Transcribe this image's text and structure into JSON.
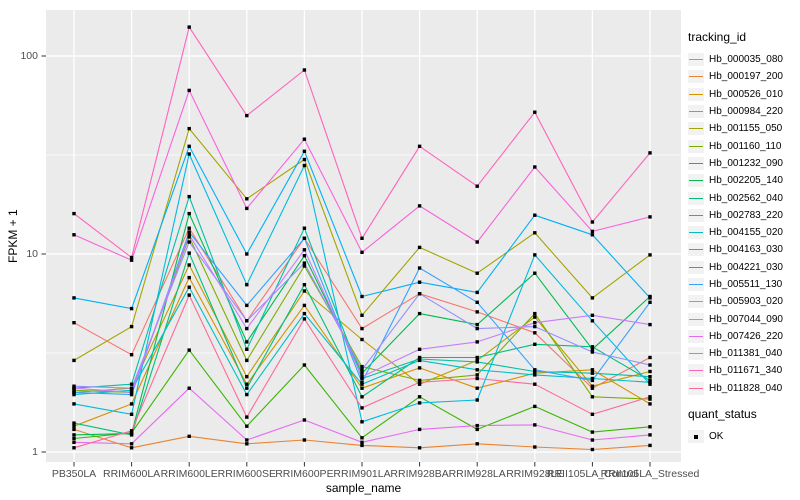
{
  "chart_data": {
    "type": "line",
    "title": "",
    "xlabel": "sample_name",
    "ylabel": "FPKM + 1",
    "y_scale": "log10",
    "y_ticks": [
      1,
      10,
      100
    ],
    "y_minor_ticks": [
      3.162,
      31.62
    ],
    "ylim": [
      0.9,
      170
    ],
    "grid": "on",
    "legend_position": "right",
    "categories": [
      "PB350LA",
      "RRIM600LA",
      "RRIM600LE",
      "RRIM600SE",
      "RRIM600PE",
      "RRIM901LA",
      "RRIM928BA",
      "RRIM928LA",
      "RRIM928LE",
      "RRII105LA_Control",
      "RRII105LA_Stressed"
    ],
    "series": [
      {
        "name": "Hb_000035_080",
        "color": "#F8766D",
        "values": [
          4.5,
          3.1,
          13.5,
          4.6,
          12.0,
          4.2,
          6.3,
          5.1,
          4.0,
          2.1,
          3.0
        ]
      },
      {
        "name": "Hb_000197_200",
        "color": "#EA8331",
        "values": [
          1.3,
          1.05,
          1.2,
          1.1,
          1.15,
          1.08,
          1.05,
          1.1,
          1.06,
          1.03,
          1.08
        ]
      },
      {
        "name": "Hb_000526_010",
        "color": "#D89000",
        "values": [
          1.35,
          1.75,
          7.6,
          2.2,
          5.5,
          2.1,
          2.66,
          2.1,
          2.5,
          2.6,
          1.75
        ]
      },
      {
        "name": "Hb_000984_220",
        "color": "#C09B00",
        "values": [
          2.0,
          2.1,
          8.8,
          2.4,
          6.5,
          3.7,
          2.2,
          2.9,
          4.8,
          2.15,
          2.55
        ]
      },
      {
        "name": "Hb_001155_050",
        "color": "#A3A500",
        "values": [
          2.9,
          4.3,
          43,
          19,
          30,
          4.9,
          10.8,
          8.0,
          12.8,
          6.0,
          9.9
        ]
      },
      {
        "name": "Hb_001160_110",
        "color": "#7CAE00",
        "values": [
          2.05,
          2.0,
          12.2,
          2.9,
          8.7,
          2.7,
          2.3,
          2.45,
          5.0,
          1.9,
          1.85
        ]
      },
      {
        "name": "Hb_001232_090",
        "color": "#39B600",
        "values": [
          1.17,
          1.25,
          3.27,
          1.35,
          2.75,
          1.18,
          1.9,
          1.3,
          1.7,
          1.26,
          1.34
        ]
      },
      {
        "name": "Hb_002205_140",
        "color": "#00BB4E",
        "values": [
          1.22,
          1.24,
          16,
          3.6,
          9.8,
          2.5,
          5.0,
          4.4,
          8.0,
          3.3,
          6.1
        ]
      },
      {
        "name": "Hb_002562_040",
        "color": "#00BF7D",
        "values": [
          1.4,
          1.22,
          10.1,
          2.1,
          7.0,
          1.9,
          3.0,
          3.0,
          3.5,
          3.4,
          2.3
        ]
      },
      {
        "name": "Hb_002783_220",
        "color": "#00C1A3",
        "values": [
          2.1,
          2.2,
          19.5,
          3.3,
          13.5,
          2.35,
          2.95,
          2.85,
          2.55,
          2.5,
          2.4
        ]
      },
      {
        "name": "Hb_004155_020",
        "color": "#00BFC4",
        "values": [
          1.95,
          2.05,
          6.8,
          1.95,
          5.0,
          2.2,
          2.9,
          2.6,
          2.45,
          2.35,
          2.25
        ]
      },
      {
        "name": "Hb_004163_030",
        "color": "#00BAE0",
        "values": [
          1.75,
          1.55,
          32,
          7.0,
          28,
          1.42,
          1.77,
          1.83,
          9.9,
          4.6,
          2.2
        ]
      },
      {
        "name": "Hb_004221_030",
        "color": "#00B0F6",
        "values": [
          6.0,
          5.3,
          35,
          10,
          33,
          6.1,
          7.2,
          6.4,
          15.7,
          12.5,
          6.0
        ]
      },
      {
        "name": "Hb_005511_130",
        "color": "#35A2FF",
        "values": [
          2.0,
          1.95,
          12.9,
          5.5,
          12.0,
          2.25,
          8.5,
          5.7,
          2.6,
          2.3,
          5.7
        ]
      },
      {
        "name": "Hb_005903_020",
        "color": "#9590FF",
        "values": [
          2.15,
          2.1,
          11.5,
          4.6,
          9.0,
          2.6,
          6.3,
          4.2,
          4.3,
          3.2,
          2.75
        ]
      },
      {
        "name": "Hb_007044_090",
        "color": "#C77CFF",
        "values": [
          2.1,
          2.0,
          12.5,
          4.2,
          10.5,
          2.4,
          3.3,
          3.6,
          4.5,
          4.9,
          4.4
        ]
      },
      {
        "name": "Hb_007426_220",
        "color": "#E76BF3",
        "values": [
          1.12,
          1.1,
          2.1,
          1.15,
          1.45,
          1.12,
          1.3,
          1.36,
          1.37,
          1.15,
          1.22
        ]
      },
      {
        "name": "Hb_011381_040",
        "color": "#FA62DB",
        "values": [
          12.5,
          9.3,
          67,
          17,
          38,
          10.2,
          17.5,
          11.5,
          27.5,
          13,
          15.4
        ]
      },
      {
        "name": "Hb_011671_340",
        "color": "#FF62BC",
        "values": [
          16,
          9.6,
          140,
          50,
          85,
          12,
          35,
          22,
          52,
          14.5,
          32.4
        ]
      },
      {
        "name": "Hb_011828_040",
        "color": "#FF6A98",
        "values": [
          1.05,
          1.28,
          6.2,
          1.5,
          4.7,
          1.67,
          2.25,
          2.35,
          2.2,
          1.55,
          1.9
        ]
      }
    ],
    "marker": {
      "shape": "square",
      "color": "#000000"
    }
  },
  "legend": {
    "tracking_title": "tracking_id",
    "quant_title": "quant_status",
    "quant_items": [
      {
        "label": "OK"
      }
    ]
  },
  "style_colors": {
    "panel_background": "#EBEBEB",
    "gridline": "#FFFFFF",
    "tick_label": "#4D4D4D",
    "legend_key_background": "#F2F2F2"
  }
}
